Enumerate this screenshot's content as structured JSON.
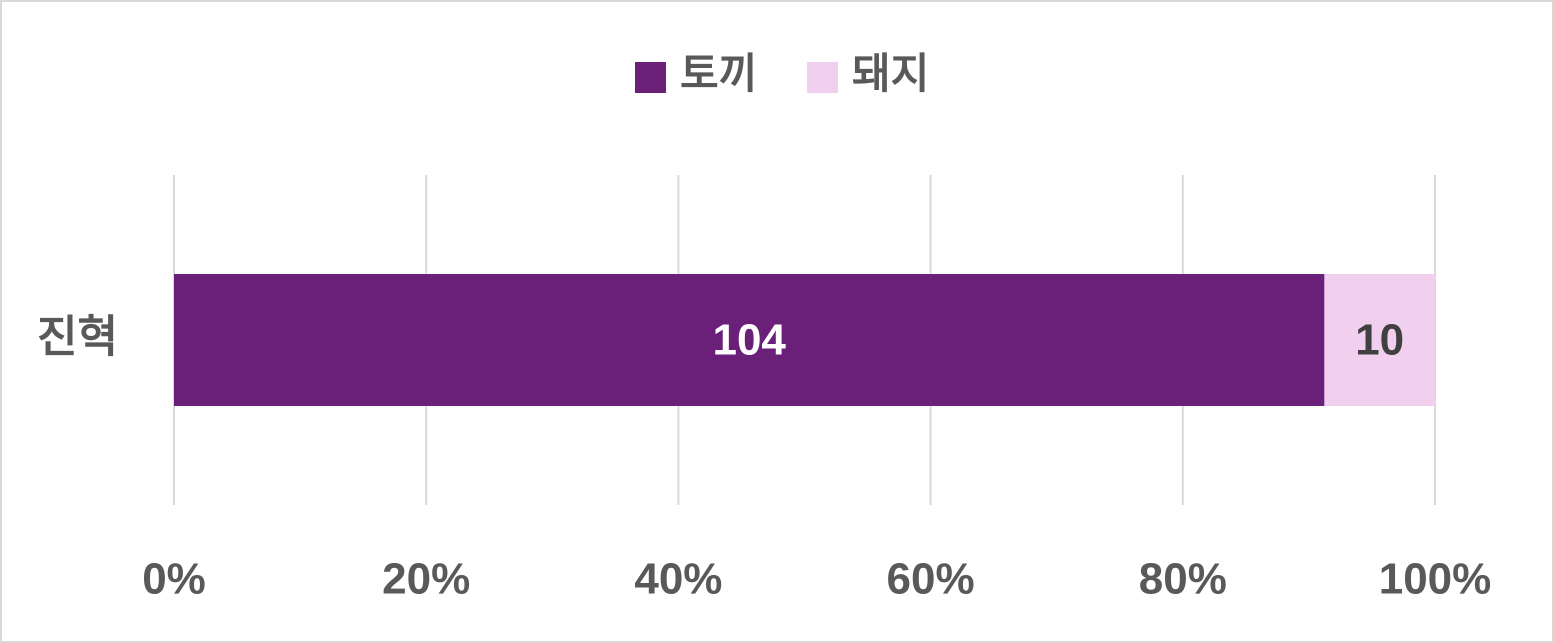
{
  "chart_data": {
    "type": "bar",
    "orientation": "horizontal",
    "stacking": "percent",
    "categories": [
      "진혁"
    ],
    "series": [
      {
        "name": "토끼",
        "color": "#6a1f78",
        "values": [
          104
        ]
      },
      {
        "name": "돼지",
        "color": "#f0d0ee",
        "values": [
          10
        ]
      }
    ],
    "xlim": [
      0,
      100
    ],
    "xticks": [
      {
        "value": 0,
        "label": "0%"
      },
      {
        "value": 20,
        "label": "20%"
      },
      {
        "value": 40,
        "label": "40%"
      },
      {
        "value": 60,
        "label": "60%"
      },
      {
        "value": 80,
        "label": "80%"
      },
      {
        "value": 100,
        "label": "100%"
      }
    ],
    "grid": true,
    "legend": "top"
  }
}
